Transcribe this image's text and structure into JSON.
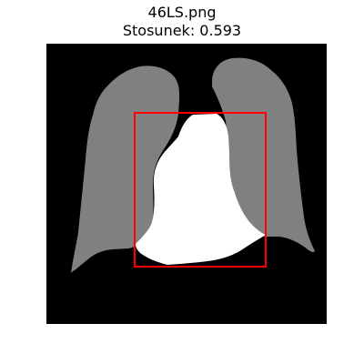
{
  "figure": {
    "filename": "46LS.png",
    "ratio_text": "Stosunek: 0.593"
  },
  "colors": {
    "background": "#000000",
    "lungs": "#808080",
    "heart": "#ffffff",
    "bounding_box": "#ff0000"
  }
}
